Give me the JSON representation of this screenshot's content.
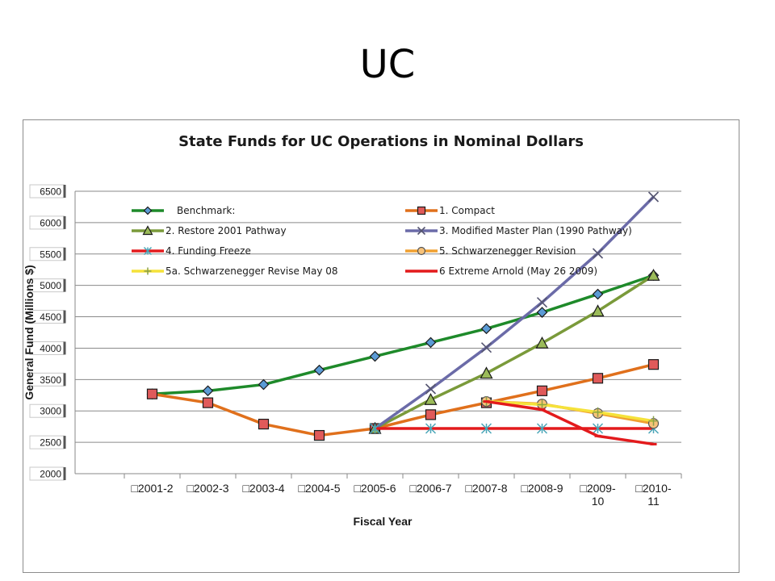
{
  "slide": {
    "title": "UC"
  },
  "chart_data": {
    "type": "line",
    "title": "State Funds for UC Operations in Nominal Dollars",
    "xlabel": "Fiscal Year",
    "ylabel": "General Fund (Millions $)",
    "ylim": [
      2000,
      6500
    ],
    "yticks": [
      "2000",
      "2500",
      "3000",
      "3500",
      "4000",
      "4500",
      "5000",
      "5500",
      "6000",
      "6500"
    ],
    "categories": [
      "□2001-2",
      "□2002-3",
      "□2003-4",
      "□2004-5",
      "□2005-6",
      "□2006-7",
      "□2007-8",
      "□2008-9",
      "□2009-\n10",
      "□2010-\n11"
    ],
    "grid": true,
    "legend_position": "top",
    "series": [
      {
        "name": "Benchmark:",
        "color": "#1e8a2a",
        "marker": "diamond",
        "values": [
          3270,
          3320,
          3420,
          3650,
          3870,
          4090,
          4310,
          4570,
          4860,
          5160
        ]
      },
      {
        "name": "1. Compact",
        "color": "#e0701c",
        "marker": "square",
        "values": [
          3270,
          3130,
          2790,
          2610,
          2720,
          2940,
          3130,
          3320,
          3520,
          3740
        ]
      },
      {
        "name": "2. Restore 2001 Pathway",
        "color": "#7a9a3a",
        "marker": "triangle",
        "values": [
          null,
          null,
          null,
          null,
          2720,
          3180,
          3600,
          4080,
          4590,
          5160
        ]
      },
      {
        "name": "3. Modified Master Plan (1990 Pathway)",
        "color": "#6b6ba8",
        "marker": "x",
        "values": [
          null,
          null,
          null,
          null,
          2720,
          3350,
          4010,
          4730,
          5510,
          6410
        ]
      },
      {
        "name": "4. Funding Freeze",
        "color": "#e31a1c",
        "marker": "star",
        "values": [
          null,
          null,
          null,
          null,
          2720,
          2720,
          2720,
          2720,
          2720,
          2720
        ]
      },
      {
        "name": "5. Schwarzenegger Revision",
        "color": "#f0a030",
        "marker": "circle",
        "values": [
          null,
          null,
          null,
          null,
          null,
          null,
          3150,
          3110,
          2960,
          2800
        ]
      },
      {
        "name": "5a. Schwarzenegger Revise May 08",
        "color": "#f5e23a",
        "marker": "plus",
        "values": [
          null,
          null,
          null,
          null,
          null,
          null,
          3150,
          3100,
          2980,
          2840
        ]
      },
      {
        "name": "6 Extreme Arnold (May 26 2009)",
        "color": "#e31a1c",
        "marker": "dash",
        "values": [
          null,
          null,
          null,
          null,
          null,
          null,
          3150,
          3020,
          2600,
          2470
        ]
      }
    ]
  }
}
